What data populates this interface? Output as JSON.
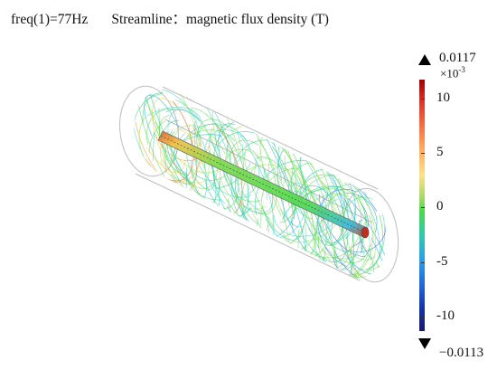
{
  "header": {
    "freq_label": "freq(1)=77Hz",
    "plot_label": "Streamline：magnetic flux density (T)"
  },
  "colorbar": {
    "max_label": "0.0117",
    "min_label": "−0.0113",
    "multiplier": "×10",
    "exponent": "-3",
    "ticks": [
      "10",
      "5",
      "0",
      "-5",
      "-10"
    ],
    "tick_values": [
      10,
      5,
      0,
      -5,
      -10
    ],
    "range": [
      -11.3,
      11.7
    ]
  },
  "colors": {
    "high": "#c00000",
    "mid": "#4dd94d",
    "low": "#1a1a6a"
  }
}
